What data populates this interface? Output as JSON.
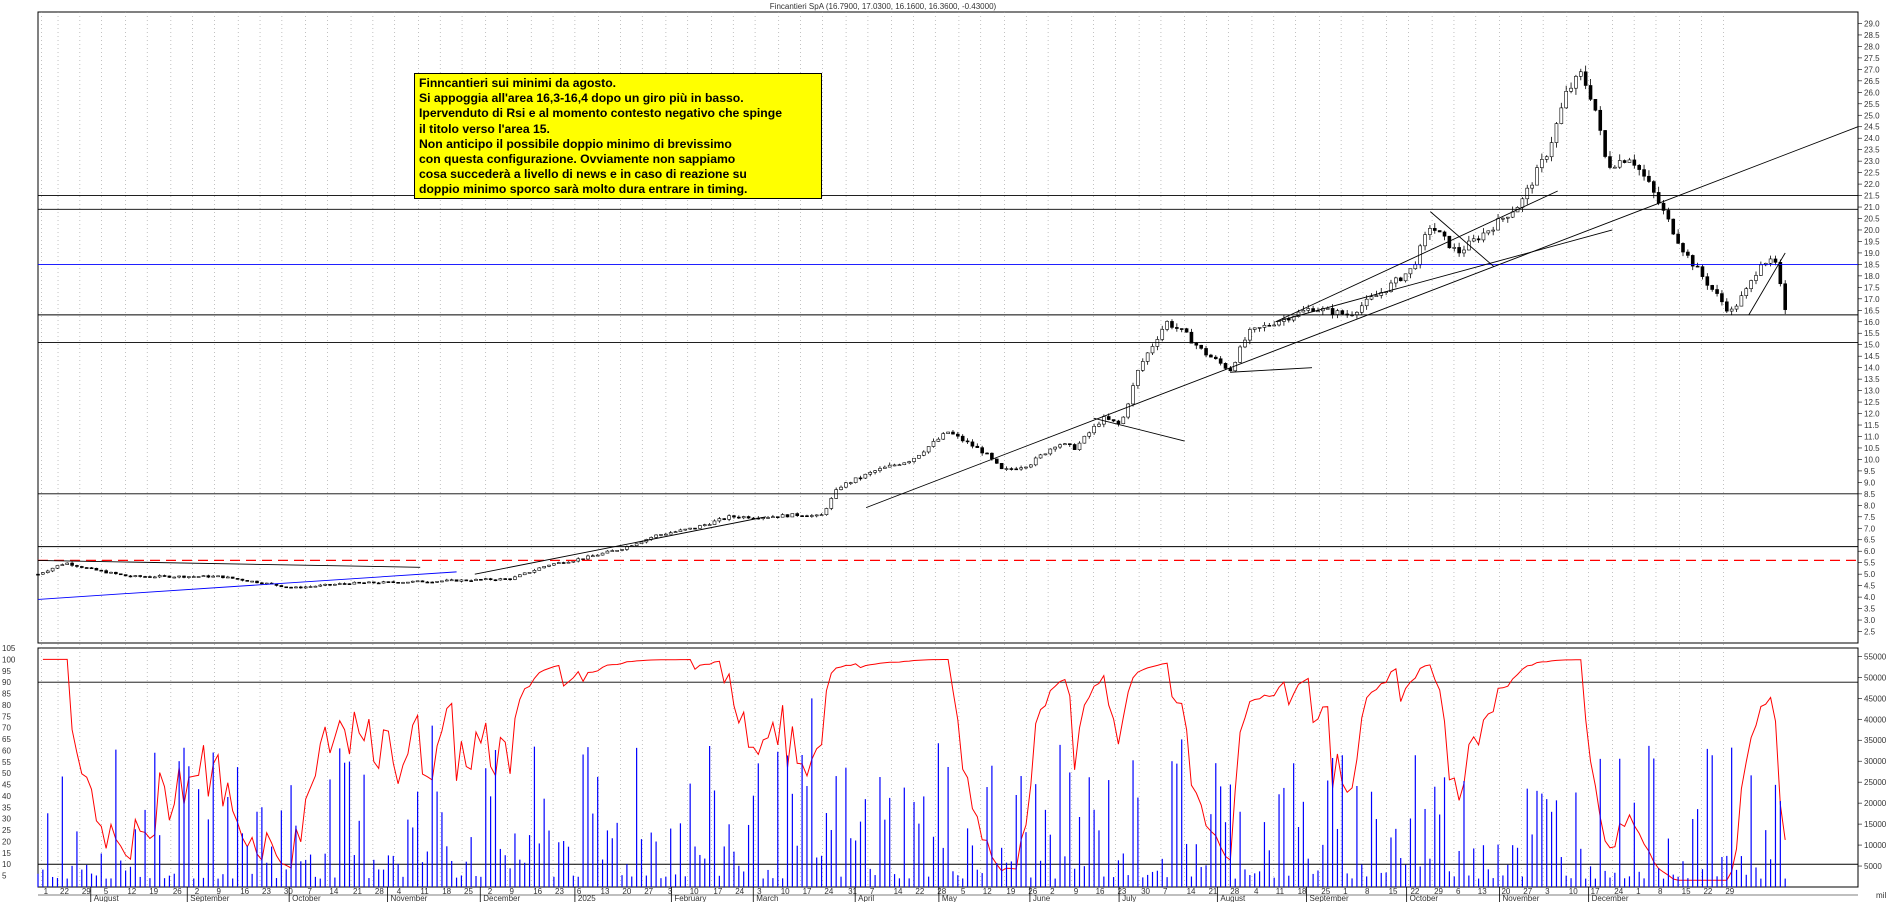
{
  "chart_data": [
    {
      "type": "candlestick",
      "title": "Fincantieri SpA (16.7900, 17.0300, 16.1600, 16.3600, -0.43000)",
      "ylim": [
        2.0,
        29.5
      ],
      "y_ticks": [
        2.5,
        3.0,
        3.5,
        4.0,
        4.5,
        5.0,
        5.5,
        6.0,
        6.5,
        7.0,
        7.5,
        8.0,
        8.5,
        9.0,
        9.5,
        10.0,
        10.5,
        11.0,
        11.5,
        12.0,
        12.5,
        13.0,
        13.5,
        14.0,
        14.5,
        15.0,
        15.5,
        16.0,
        16.5,
        17.0,
        17.5,
        18.0,
        18.5,
        19.0,
        19.5,
        20.0,
        20.5,
        21.0,
        21.5,
        22.0,
        22.5,
        23.0,
        23.5,
        24.0,
        24.5,
        25.0,
        25.5,
        26.0,
        26.5,
        27.0,
        27.5,
        28.0,
        28.5,
        29.0
      ],
      "horizontal_levels": [
        15.1,
        16.3,
        18.5,
        20.9,
        21.5,
        6.2,
        8.5
      ],
      "dashed_level": 5.6,
      "annotation": [
        "Finncantieri sui minimi da agosto.",
        "Si appoggia all'area 16,3-16,4 dopo un giro più in basso.",
        "Ipervenduto di Rsi e al momento contesto negativo che spinge",
        "il titolo verso l'area 15.",
        "Non anticipo il possibile doppio minimo di brevissimo",
        "con questa configurazione. Ovviamente non sappiamo",
        "cosa succederà a livello di news e in caso di reazione su",
        "doppio minimo sporco sarà molto dura entrare in timing."
      ],
      "price_path": [
        [
          0,
          5.0
        ],
        [
          0.015,
          5.5
        ],
        [
          0.03,
          5.2
        ],
        [
          0.05,
          4.9
        ],
        [
          0.1,
          4.9
        ],
        [
          0.125,
          4.6
        ],
        [
          0.14,
          4.4
        ],
        [
          0.17,
          4.6
        ],
        [
          0.22,
          4.7
        ],
        [
          0.26,
          4.8
        ],
        [
          0.28,
          5.4
        ],
        [
          0.3,
          5.7
        ],
        [
          0.32,
          6.1
        ],
        [
          0.34,
          6.7
        ],
        [
          0.36,
          7.0
        ],
        [
          0.38,
          7.5
        ],
        [
          0.4,
          7.5
        ],
        [
          0.42,
          7.6
        ],
        [
          0.43,
          7.5
        ],
        [
          0.44,
          8.8
        ],
        [
          0.46,
          9.5
        ],
        [
          0.48,
          10.0
        ],
        [
          0.5,
          11.2
        ],
        [
          0.52,
          10.3
        ],
        [
          0.53,
          9.5
        ],
        [
          0.545,
          9.8
        ],
        [
          0.56,
          10.7
        ],
        [
          0.57,
          10.5
        ],
        [
          0.585,
          11.8
        ],
        [
          0.595,
          11.5
        ],
        [
          0.605,
          14.0
        ],
        [
          0.62,
          16.0
        ],
        [
          0.63,
          15.5
        ],
        [
          0.64,
          14.7
        ],
        [
          0.655,
          13.9
        ],
        [
          0.665,
          15.5
        ],
        [
          0.68,
          16.0
        ],
        [
          0.7,
          16.6
        ],
        [
          0.72,
          16.3
        ],
        [
          0.74,
          17.4
        ],
        [
          0.755,
          18.3
        ],
        [
          0.765,
          20.2
        ],
        [
          0.78,
          19.0
        ],
        [
          0.8,
          20.2
        ],
        [
          0.815,
          21.2
        ],
        [
          0.83,
          23.5
        ],
        [
          0.84,
          26.0
        ],
        [
          0.848,
          26.8
        ],
        [
          0.855,
          25.5
        ],
        [
          0.862,
          22.8
        ],
        [
          0.875,
          23.2
        ],
        [
          0.885,
          22.0
        ],
        [
          0.895,
          20.5
        ],
        [
          0.905,
          19.0
        ],
        [
          0.918,
          17.6
        ],
        [
          0.93,
          16.4
        ],
        [
          0.94,
          17.5
        ],
        [
          0.947,
          18.7
        ],
        [
          0.955,
          18.5
        ],
        [
          0.96,
          16.4
        ]
      ]
    },
    {
      "type": "line",
      "series": [
        {
          "values": []
        }
      ],
      "ylim": [
        0,
        105
      ],
      "y_ticks": [
        5,
        10,
        15,
        20,
        25,
        30,
        35,
        40,
        45,
        50,
        55,
        60,
        65,
        70,
        75,
        80,
        85,
        90,
        95,
        100,
        105
      ],
      "horizontal_levels": [
        10,
        90
      ]
    },
    {
      "type": "bar",
      "ylim": [
        0,
        57000
      ],
      "y_ticks": [
        5000,
        10000,
        15000,
        20000,
        25000,
        30000,
        35000,
        40000,
        45000,
        50000,
        55000
      ]
    }
  ],
  "x_axis": {
    "day_ticks": [
      {
        "t": 0.002,
        "label": "1"
      },
      {
        "t": 0.011,
        "label": "22"
      },
      {
        "t": 0.023,
        "label": "29"
      },
      {
        "t": 0.035,
        "label": "5"
      },
      {
        "t": 0.048,
        "label": "12"
      },
      {
        "t": 0.06,
        "label": "19"
      },
      {
        "t": 0.073,
        "label": "26"
      },
      {
        "t": 0.085,
        "label": "2"
      },
      {
        "t": 0.097,
        "label": "9"
      },
      {
        "t": 0.11,
        "label": "16"
      },
      {
        "t": 0.122,
        "label": "23"
      },
      {
        "t": 0.134,
        "label": "30"
      },
      {
        "t": 0.147,
        "label": "7"
      },
      {
        "t": 0.159,
        "label": "14"
      },
      {
        "t": 0.172,
        "label": "21"
      },
      {
        "t": 0.184,
        "label": "28"
      },
      {
        "t": 0.196,
        "label": "4"
      },
      {
        "t": 0.209,
        "label": "11"
      },
      {
        "t": 0.221,
        "label": "18"
      },
      {
        "t": 0.233,
        "label": "25"
      },
      {
        "t": 0.246,
        "label": "2"
      },
      {
        "t": 0.258,
        "label": "9"
      },
      {
        "t": 0.271,
        "label": "16"
      },
      {
        "t": 0.283,
        "label": "23"
      },
      {
        "t": 0.295,
        "label": "6"
      },
      {
        "t": 0.308,
        "label": "13"
      },
      {
        "t": 0.32,
        "label": "20"
      },
      {
        "t": 0.332,
        "label": "27"
      },
      {
        "t": 0.345,
        "label": "3"
      },
      {
        "t": 0.357,
        "label": "10"
      },
      {
        "t": 0.37,
        "label": "17"
      },
      {
        "t": 0.382,
        "label": "24"
      },
      {
        "t": 0.394,
        "label": "3"
      },
      {
        "t": 0.407,
        "label": "10"
      },
      {
        "t": 0.419,
        "label": "17"
      },
      {
        "t": 0.431,
        "label": "24"
      },
      {
        "t": 0.444,
        "label": "31"
      },
      {
        "t": 0.456,
        "label": "7"
      },
      {
        "t": 0.469,
        "label": "14"
      },
      {
        "t": 0.481,
        "label": "22"
      },
      {
        "t": 0.493,
        "label": "28"
      },
      {
        "t": 0.506,
        "label": "5"
      },
      {
        "t": 0.518,
        "label": "12"
      },
      {
        "t": 0.531,
        "label": "19"
      },
      {
        "t": 0.543,
        "label": "26"
      },
      {
        "t": 0.555,
        "label": "2"
      },
      {
        "t": 0.568,
        "label": "9"
      },
      {
        "t": 0.58,
        "label": "16"
      },
      {
        "t": 0.592,
        "label": "23"
      },
      {
        "t": 0.605,
        "label": "30"
      },
      {
        "t": 0.617,
        "label": "7"
      },
      {
        "t": 0.63,
        "label": "14"
      },
      {
        "t": 0.642,
        "label": "21"
      },
      {
        "t": 0.654,
        "label": "28"
      },
      {
        "t": 0.667,
        "label": "4"
      },
      {
        "t": 0.679,
        "label": "11"
      },
      {
        "t": 0.691,
        "label": "18"
      },
      {
        "t": 0.704,
        "label": "25"
      },
      {
        "t": 0.716,
        "label": "1"
      },
      {
        "t": 0.728,
        "label": "8"
      },
      {
        "t": 0.741,
        "label": "15"
      },
      {
        "t": 0.753,
        "label": "22"
      },
      {
        "t": 0.766,
        "label": "29"
      },
      {
        "t": 0.778,
        "label": "6"
      },
      {
        "t": 0.79,
        "label": "13"
      },
      {
        "t": 0.803,
        "label": "20"
      },
      {
        "t": 0.815,
        "label": "27"
      },
      {
        "t": 0.827,
        "label": "3"
      },
      {
        "t": 0.84,
        "label": "10"
      },
      {
        "t": 0.852,
        "label": "17"
      },
      {
        "t": 0.865,
        "label": "24"
      },
      {
        "t": 0.877,
        "label": "1"
      },
      {
        "t": 0.889,
        "label": "8"
      },
      {
        "t": 0.902,
        "label": "15"
      },
      {
        "t": 0.914,
        "label": "22"
      },
      {
        "t": 0.926,
        "label": "29"
      }
    ],
    "month_ticks": [
      {
        "t": 0.029,
        "label": "August"
      },
      {
        "t": 0.082,
        "label": "September"
      },
      {
        "t": 0.138,
        "label": "October"
      },
      {
        "t": 0.192,
        "label": "November"
      },
      {
        "t": 0.243,
        "label": "December"
      },
      {
        "t": 0.295,
        "label": "2025"
      },
      {
        "t": 0.348,
        "label": "February"
      },
      {
        "t": 0.393,
        "label": "March"
      },
      {
        "t": 0.449,
        "label": "April"
      },
      {
        "t": 0.495,
        "label": "May"
      },
      {
        "t": 0.545,
        "label": "June"
      },
      {
        "t": 0.594,
        "label": "July"
      },
      {
        "t": 0.648,
        "label": "August"
      },
      {
        "t": 0.697,
        "label": "September"
      },
      {
        "t": 0.752,
        "label": "October"
      },
      {
        "t": 0.803,
        "label": "November"
      },
      {
        "t": 0.852,
        "label": "December"
      }
    ],
    "corner_label": "mil"
  },
  "colors": {
    "up": "#000000",
    "down": "#000000",
    "rsi": "#ff0000",
    "volume": "#0000ff",
    "level": "#000000",
    "blue_level": "#0000ff",
    "dashed_level": "#ff0000",
    "note_bg": "#ffff00",
    "grid": "#999999"
  }
}
